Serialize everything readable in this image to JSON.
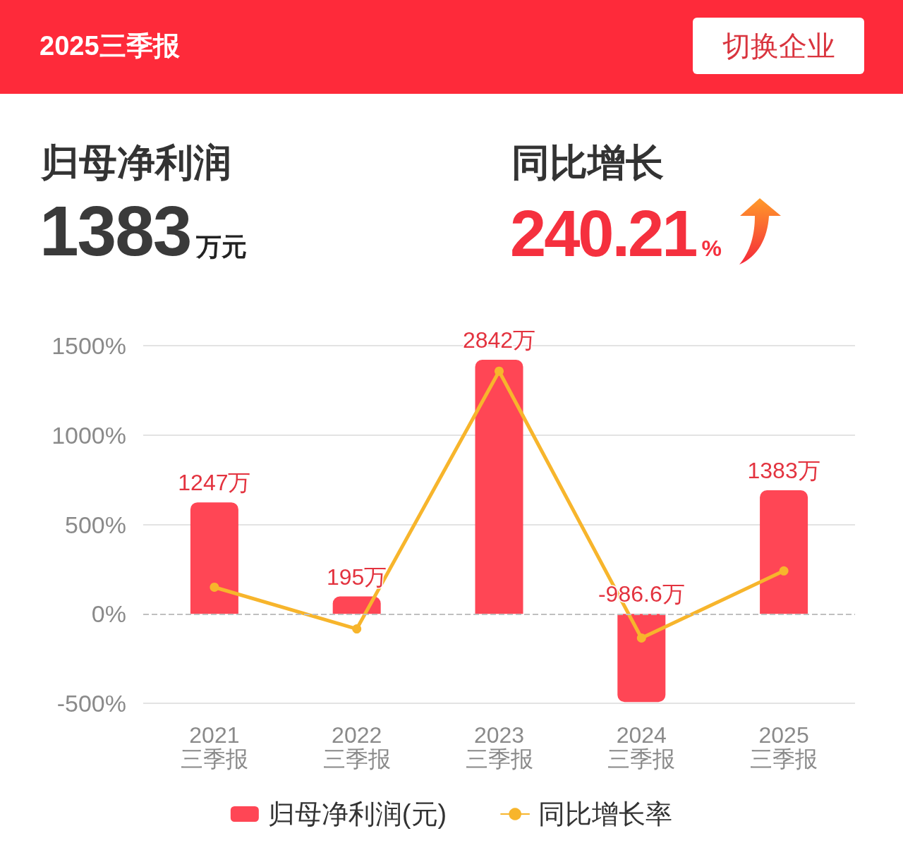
{
  "chart_data": {
    "type": "bar",
    "title": "2025三季报",
    "annotations": [
      "切换企业",
      "归母净利润",
      "1383",
      "万元",
      "同比增长",
      "240.21",
      "%"
    ],
    "categories": [
      "2021\n三季报",
      "2022\n三季报",
      "2023\n三季报",
      "2024\n三季报",
      "2025\n三季报"
    ],
    "series": [
      {
        "name": "归母净利润(元)",
        "axis": "y2",
        "color": "#ff4655",
        "values": [
          1247,
          195,
          2842,
          -986.6,
          1383
        ],
        "value_labels": [
          "1247万",
          "195万",
          "2842万",
          "-986.6万",
          "1383万"
        ]
      },
      {
        "name": "同比增长率",
        "type": "line",
        "color": "#f7b52c",
        "values": [
          149,
          -84,
          1357,
          -135,
          240.21
        ]
      }
    ],
    "ylim": [
      -500,
      1500
    ],
    "yticks": [
      {
        "value": -500,
        "label": "-500%"
      },
      {
        "value": 0,
        "label": "0%"
      },
      {
        "value": 500,
        "label": "500%"
      },
      {
        "value": 1000,
        "label": "1000%"
      },
      {
        "value": 1500,
        "label": "1500%"
      }
    ],
    "ref_lines": [
      {
        "axis": "y",
        "value": 0,
        "color": "#c0c0c0",
        "line_style": "dashed"
      }
    ],
    "grid": "y",
    "legend": "bottom",
    "marker": "circle",
    "line_style": "solid"
  }
}
